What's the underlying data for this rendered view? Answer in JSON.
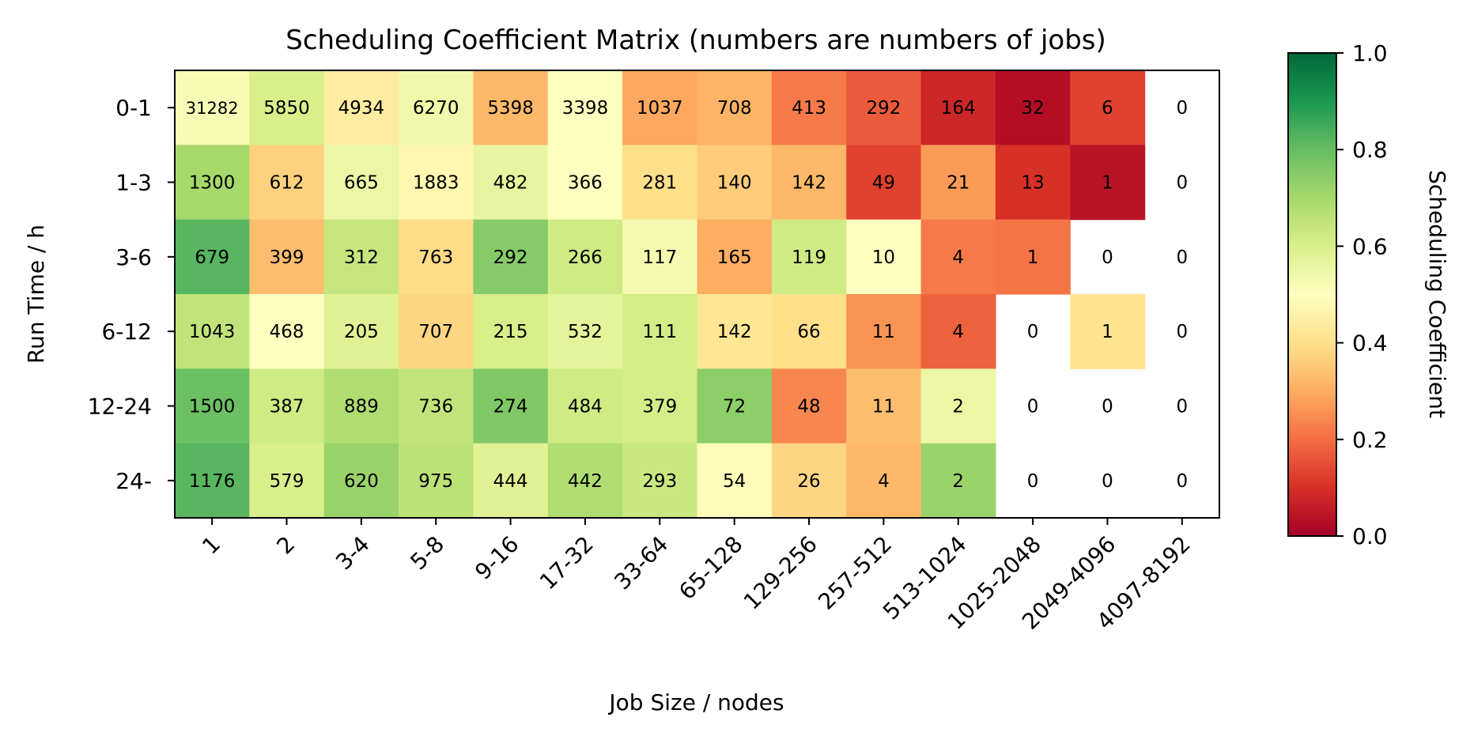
{
  "chart_data": {
    "type": "heatmap",
    "title": "Scheduling Coefficient Matrix (numbers are numbers of jobs)",
    "xlabel": "Job Size / nodes",
    "ylabel": "Run Time / h",
    "x_categories": [
      "1",
      "2",
      "3-4",
      "5-8",
      "9-16",
      "17-32",
      "33-64",
      "65-128",
      "129-256",
      "257-512",
      "513-1024",
      "1025-2048",
      "2049-4096",
      "4097-8192"
    ],
    "y_categories": [
      "0-1",
      "1-3",
      "3-6",
      "6-12",
      "12-24",
      "24-"
    ],
    "counts": [
      [
        31282,
        5850,
        4934,
        6270,
        5398,
        3398,
        1037,
        708,
        413,
        292,
        164,
        32,
        6,
        0
      ],
      [
        1300,
        612,
        665,
        1883,
        482,
        366,
        281,
        140,
        142,
        49,
        21,
        13,
        1,
        0
      ],
      [
        679,
        399,
        312,
        763,
        292,
        266,
        117,
        165,
        119,
        10,
        4,
        1,
        0,
        0
      ],
      [
        1043,
        468,
        205,
        707,
        215,
        532,
        111,
        142,
        66,
        11,
        4,
        0,
        1,
        0
      ],
      [
        1500,
        387,
        889,
        736,
        274,
        484,
        379,
        72,
        48,
        11,
        2,
        0,
        0,
        0
      ],
      [
        1176,
        579,
        620,
        975,
        444,
        442,
        293,
        54,
        26,
        4,
        2,
        0,
        0,
        0
      ]
    ],
    "coefficients": [
      [
        0.52,
        0.6,
        0.44,
        0.54,
        0.32,
        0.5,
        0.29,
        0.31,
        0.22,
        0.17,
        0.08,
        0.03,
        0.13,
        null
      ],
      [
        0.7,
        0.37,
        0.55,
        0.47,
        0.56,
        0.5,
        0.4,
        0.36,
        0.32,
        0.13,
        0.27,
        0.1,
        0.04,
        null
      ],
      [
        0.82,
        0.33,
        0.64,
        0.39,
        0.75,
        0.62,
        0.53,
        0.3,
        0.62,
        0.5,
        0.22,
        0.21,
        null,
        null
      ],
      [
        0.65,
        0.5,
        0.58,
        0.38,
        0.6,
        0.57,
        0.61,
        0.42,
        0.4,
        0.26,
        0.18,
        null,
        0.41,
        null
      ],
      [
        0.79,
        0.62,
        0.68,
        0.65,
        0.76,
        0.62,
        0.61,
        0.74,
        0.24,
        0.33,
        0.55,
        null,
        null,
        null
      ],
      [
        0.82,
        0.6,
        0.72,
        0.66,
        0.58,
        0.68,
        0.63,
        0.49,
        0.38,
        0.32,
        0.72,
        null,
        null,
        null
      ]
    ],
    "colorbar": {
      "label": "Scheduling Coefficient",
      "colormap": "RdYlGn",
      "range": [
        0.0,
        1.0
      ],
      "ticks": [
        "0.0",
        "0.2",
        "0.4",
        "0.6",
        "0.8",
        "1.0"
      ]
    },
    "grid": false
  }
}
